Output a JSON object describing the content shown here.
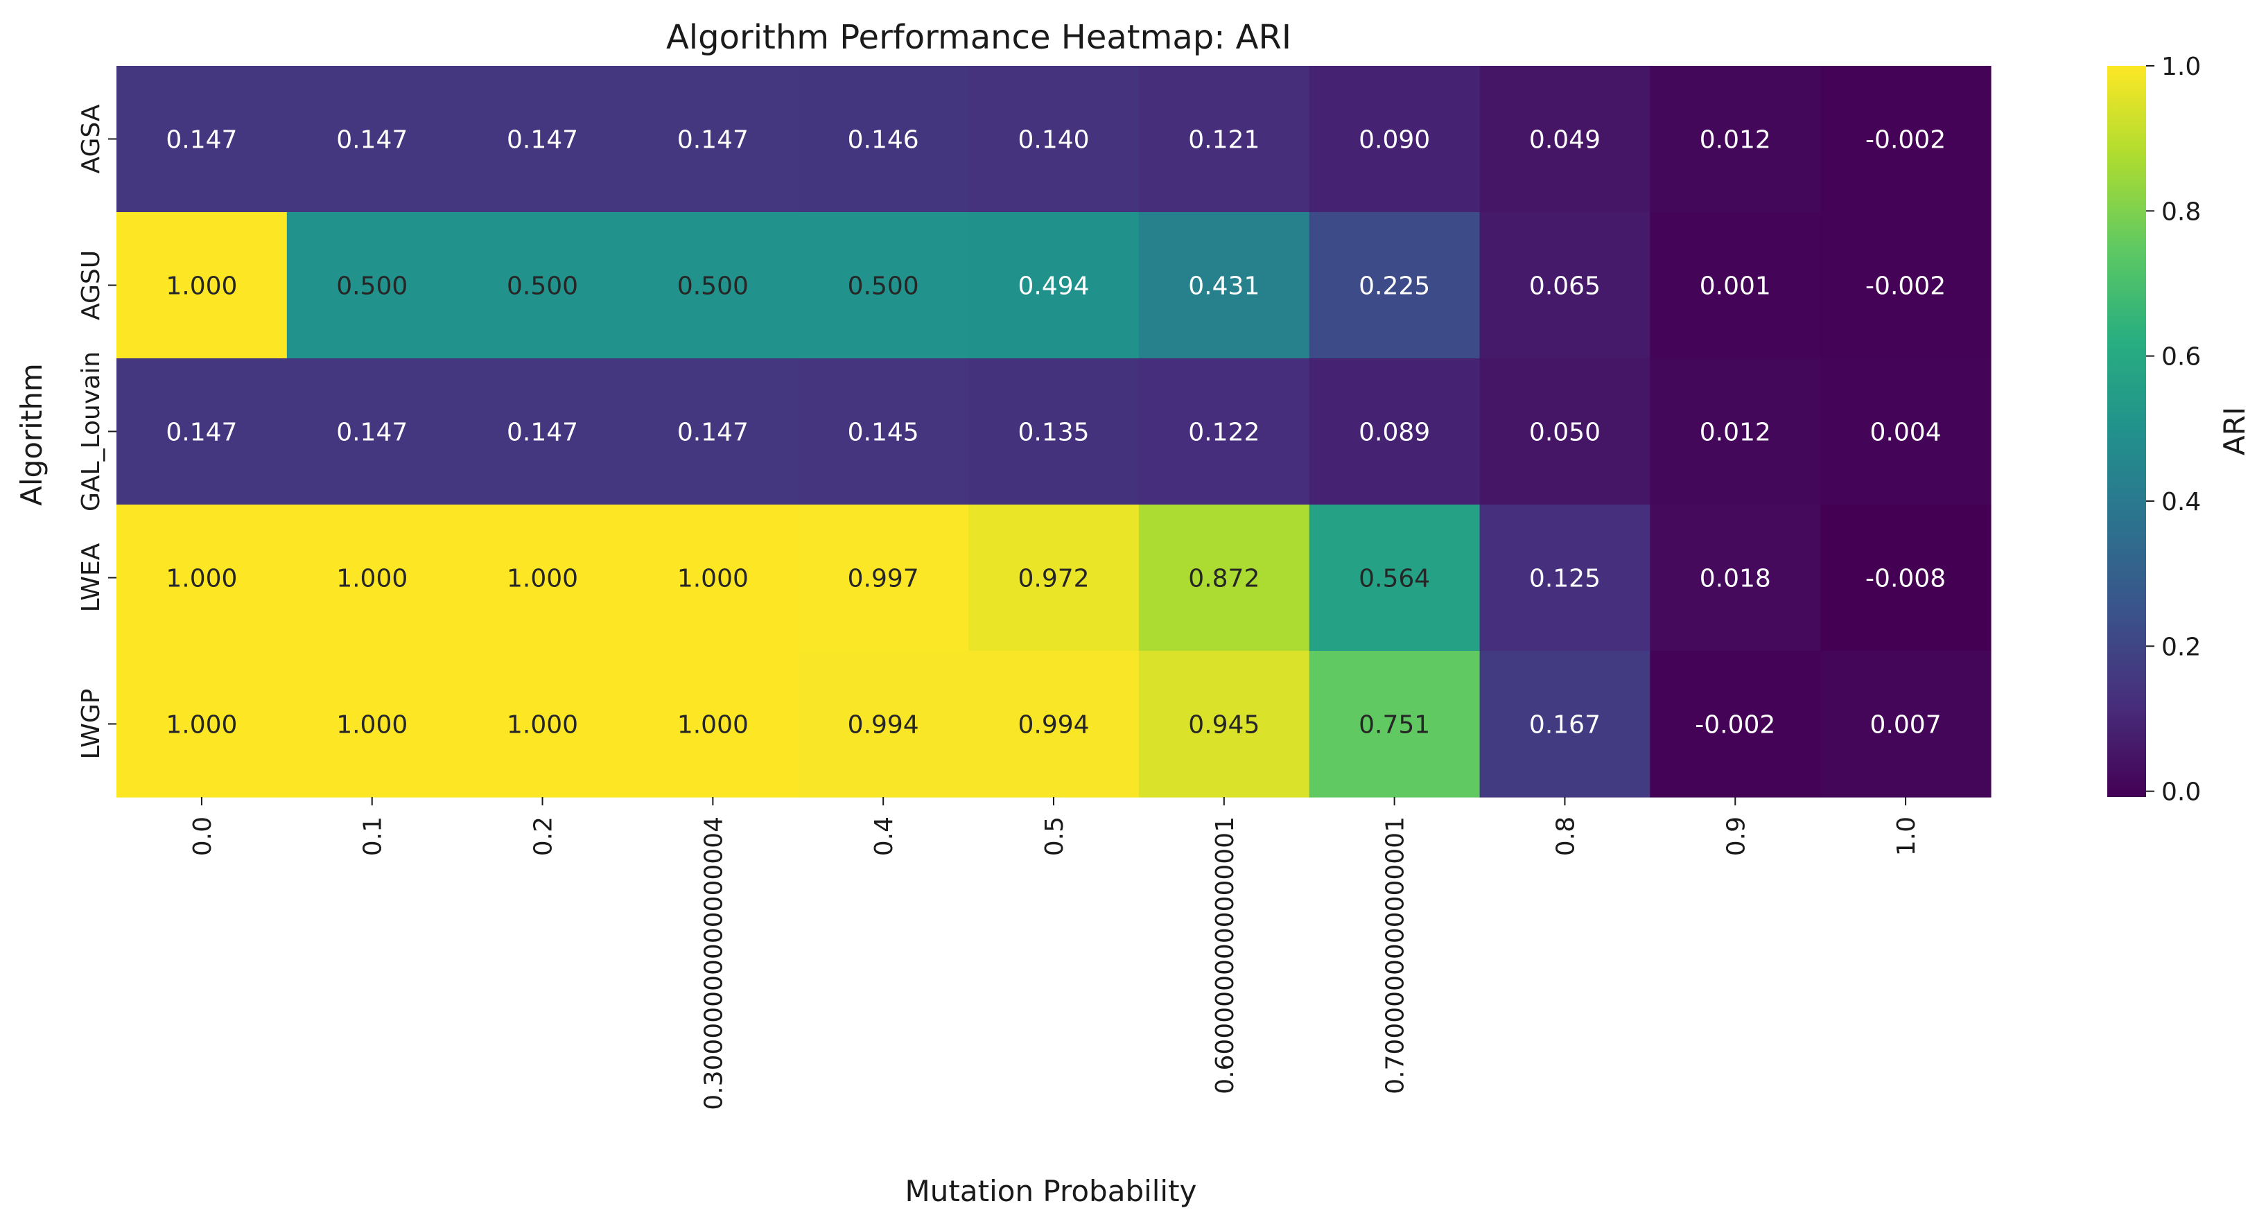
{
  "chart_data": {
    "type": "heatmap",
    "title": "Algorithm Performance Heatmap: ARI",
    "xlabel": "Mutation Probability",
    "ylabel": "Algorithm",
    "colorbar_label": "ARI",
    "colormap": "viridis",
    "vmin": -0.008,
    "vmax": 1.0,
    "colorbar_ticks": [
      "0.0",
      "0.2",
      "0.4",
      "0.6",
      "0.8",
      "1.0"
    ],
    "x_categories": [
      "0.0",
      "0.1",
      "0.2",
      "0.30000000000000004",
      "0.4",
      "0.5",
      "0.6000000000000001",
      "0.7000000000000001",
      "0.8",
      "0.9",
      "1.0"
    ],
    "y_categories": [
      "AGSA",
      "AGSU",
      "GAL_Louvain",
      "LWEA",
      "LWGP"
    ],
    "values": [
      [
        0.147,
        0.147,
        0.147,
        0.147,
        0.146,
        0.14,
        0.121,
        0.09,
        0.049,
        0.012,
        -0.002
      ],
      [
        1.0,
        0.5,
        0.5,
        0.5,
        0.5,
        0.494,
        0.431,
        0.225,
        0.065,
        0.001,
        -0.002
      ],
      [
        0.147,
        0.147,
        0.147,
        0.147,
        0.145,
        0.135,
        0.122,
        0.089,
        0.05,
        0.012,
        0.004
      ],
      [
        1.0,
        1.0,
        1.0,
        1.0,
        0.997,
        0.972,
        0.872,
        0.564,
        0.125,
        0.018,
        -0.008
      ],
      [
        1.0,
        1.0,
        1.0,
        1.0,
        0.994,
        0.994,
        0.945,
        0.751,
        0.167,
        -0.002,
        0.007
      ]
    ],
    "value_labels": [
      [
        "0.147",
        "0.147",
        "0.147",
        "0.147",
        "0.146",
        "0.140",
        "0.121",
        "0.090",
        "0.049",
        "0.012",
        "-0.002"
      ],
      [
        "1.000",
        "0.500",
        "0.500",
        "0.500",
        "0.500",
        "0.494",
        "0.431",
        "0.225",
        "0.065",
        "0.001",
        "-0.002"
      ],
      [
        "0.147",
        "0.147",
        "0.147",
        "0.147",
        "0.145",
        "0.135",
        "0.122",
        "0.089",
        "0.050",
        "0.012",
        "0.004"
      ],
      [
        "1.000",
        "1.000",
        "1.000",
        "1.000",
        "0.997",
        "0.972",
        "0.872",
        "0.564",
        "0.125",
        "0.018",
        "-0.008"
      ],
      [
        "1.000",
        "1.000",
        "1.000",
        "1.000",
        "0.994",
        "0.994",
        "0.945",
        "0.751",
        "0.167",
        "-0.002",
        "0.007"
      ]
    ]
  }
}
